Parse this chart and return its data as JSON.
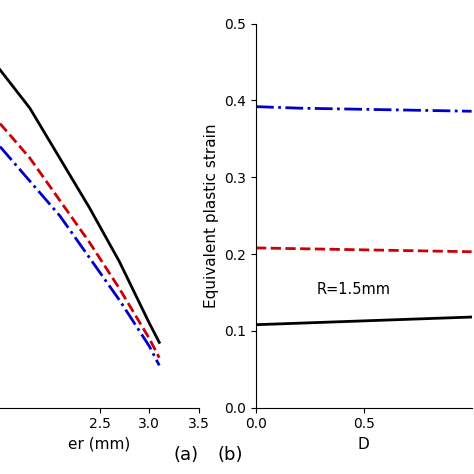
{
  "panel_b_ylabel": "Equivalent plastic strain",
  "panel_b_xlabel": "D",
  "panel_b_annotation": "R=1.5mm",
  "panel_b_label": "(b)",
  "panel_a_xlabel": "er (mm)",
  "panel_a_label": "(a)",
  "panel_b_ylim": [
    0.0,
    0.5
  ],
  "panel_b_yticks": [
    0.0,
    0.1,
    0.2,
    0.3,
    0.4,
    0.5
  ],
  "panel_b_xlim": [
    0.0,
    1.0
  ],
  "panel_b_xticks": [
    0.0,
    0.5
  ],
  "panel_a_xlim": [
    1.5,
    3.5
  ],
  "panel_a_xticks": [
    2.5,
    3.0,
    3.5
  ],
  "panel_a_ylim": [
    0.0,
    1.0
  ],
  "black_solid_b": {
    "x": [
      0.0,
      0.2,
      0.4,
      0.6,
      0.8,
      1.0
    ],
    "y": [
      0.108,
      0.11,
      0.112,
      0.114,
      0.116,
      0.118
    ]
  },
  "red_dashed_b": {
    "x": [
      0.0,
      0.2,
      0.4,
      0.6,
      0.8,
      1.0
    ],
    "y": [
      0.208,
      0.207,
      0.206,
      0.205,
      0.204,
      0.203
    ]
  },
  "blue_dashdot_b": {
    "x": [
      0.0,
      0.2,
      0.4,
      0.6,
      0.8,
      1.0
    ],
    "y": [
      0.392,
      0.39,
      0.389,
      0.388,
      0.387,
      0.386
    ]
  },
  "black_solid_a": {
    "x": [
      1.5,
      1.8,
      2.1,
      2.4,
      2.7,
      3.0,
      3.1
    ],
    "y": [
      0.88,
      0.78,
      0.65,
      0.52,
      0.38,
      0.22,
      0.17
    ]
  },
  "red_dashed_a": {
    "x": [
      1.5,
      1.8,
      2.1,
      2.4,
      2.7,
      3.0,
      3.1
    ],
    "y": [
      0.74,
      0.65,
      0.54,
      0.43,
      0.31,
      0.18,
      0.13
    ]
  },
  "blue_dashdot_a": {
    "x": [
      1.5,
      1.8,
      2.1,
      2.4,
      2.7,
      3.0,
      3.1
    ],
    "y": [
      0.68,
      0.59,
      0.5,
      0.39,
      0.28,
      0.16,
      0.11
    ]
  },
  "colors": {
    "black": "#000000",
    "red": "#cc0000",
    "blue": "#0000cc"
  },
  "background_color": "#ffffff",
  "linewidth": 2.0
}
